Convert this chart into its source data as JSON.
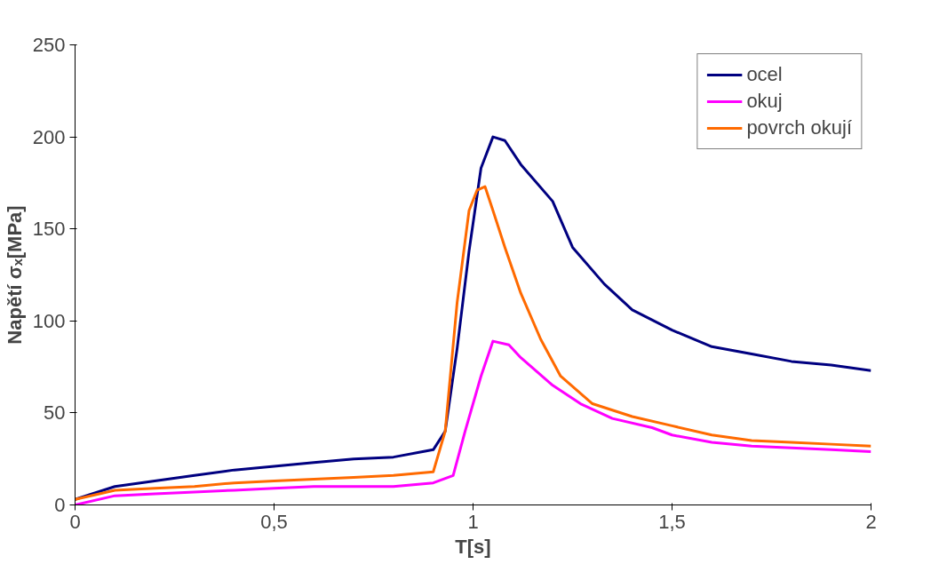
{
  "chart_data": {
    "type": "line",
    "xlabel": "T[s]",
    "ylabel": "Napětí σₓ[MPa]",
    "xlim": [
      0,
      2
    ],
    "ylim": [
      0,
      250
    ],
    "xticks": [
      0,
      {
        "value": 0.5,
        "label": "0,5"
      },
      1,
      {
        "value": 1.5,
        "label": "1,5"
      },
      2
    ],
    "yticks": [
      0,
      50,
      100,
      150,
      200,
      250
    ],
    "grid": false,
    "legend": "top right",
    "line_style": "solid",
    "marker": "none",
    "series": [
      {
        "name": "ocel",
        "color": "#000080",
        "x": [
          0,
          0.1,
          0.2,
          0.3,
          0.4,
          0.5,
          0.6,
          0.7,
          0.8,
          0.9,
          0.93,
          0.96,
          0.99,
          1.02,
          1.05,
          1.08,
          1.12,
          1.2,
          1.25,
          1.33,
          1.4,
          1.5,
          1.6,
          1.7,
          1.8,
          1.9,
          2
        ],
        "values": [
          3,
          10,
          13,
          16,
          19,
          21,
          23,
          25,
          26,
          30,
          40,
          85,
          138,
          183,
          200,
          198,
          185,
          165,
          140,
          120,
          106,
          95,
          86,
          82,
          78,
          76,
          73
        ]
      },
      {
        "name": "okuj",
        "color": "#ff00ff",
        "x": [
          0,
          0.1,
          0.2,
          0.3,
          0.4,
          0.5,
          0.6,
          0.8,
          0.9,
          0.95,
          0.98,
          1.02,
          1.05,
          1.09,
          1.12,
          1.2,
          1.27,
          1.35,
          1.45,
          1.5,
          1.6,
          1.7,
          1.8,
          1.9,
          2
        ],
        "values": [
          0,
          5,
          6,
          7,
          8,
          9,
          10,
          10,
          12,
          16,
          40,
          70,
          89,
          87,
          80,
          65,
          55,
          47,
          42,
          38,
          34,
          32,
          31,
          30,
          29
        ]
      },
      {
        "name": "povrch okují",
        "color": "#ff6a00",
        "x": [
          0,
          0.1,
          0.2,
          0.3,
          0.4,
          0.5,
          0.6,
          0.7,
          0.8,
          0.9,
          0.93,
          0.96,
          0.99,
          1.01,
          1.03,
          1.05,
          1.08,
          1.12,
          1.17,
          1.22,
          1.3,
          1.4,
          1.5,
          1.6,
          1.7,
          1.8,
          1.9,
          2
        ],
        "values": [
          3,
          8,
          9,
          10,
          12,
          13,
          14,
          15,
          16,
          18,
          40,
          110,
          160,
          171,
          173,
          160,
          140,
          115,
          90,
          70,
          55,
          48,
          43,
          38,
          35,
          34,
          33,
          32
        ]
      }
    ]
  }
}
